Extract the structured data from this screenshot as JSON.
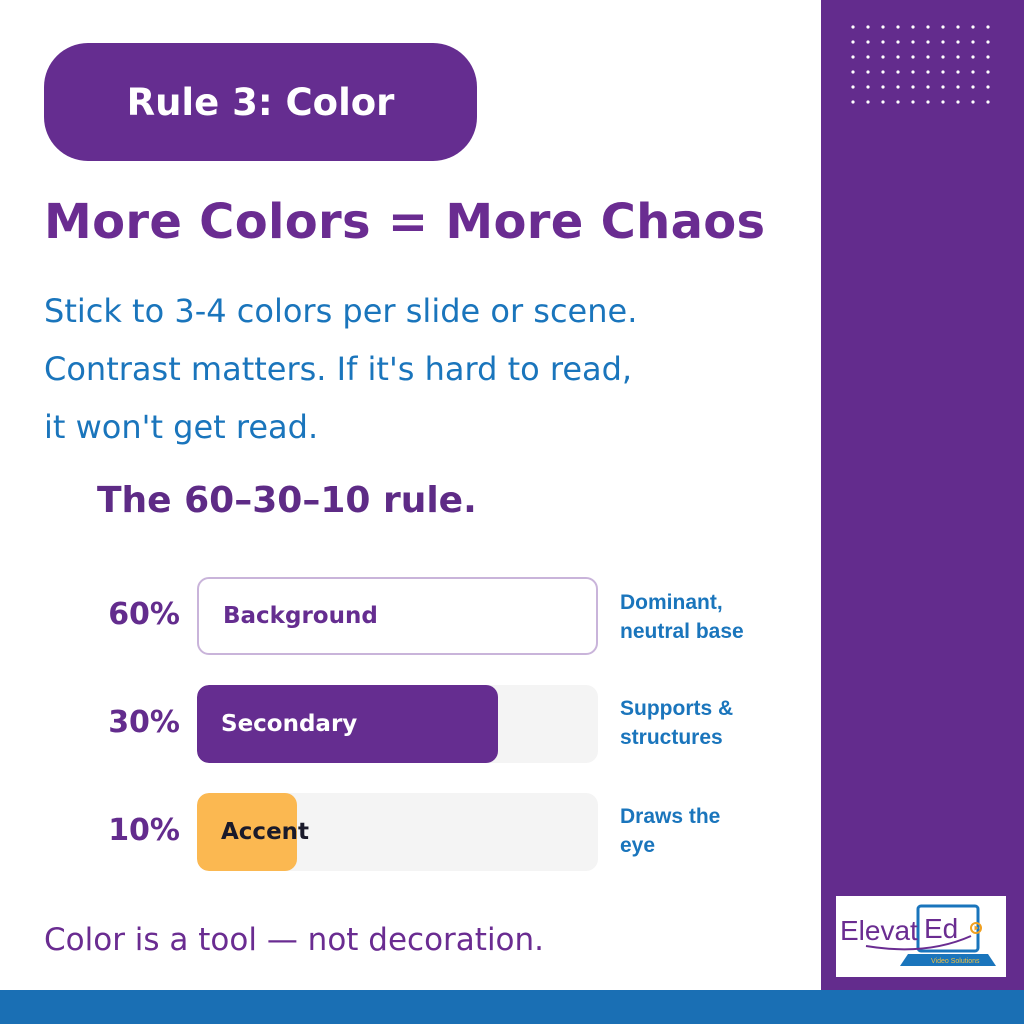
{
  "colors": {
    "purple": "#652d90",
    "blue": "#1a75bc",
    "accent": "#fbb851",
    "track": "#f4f4f4",
    "footer": "#1a6fb4"
  },
  "pill": {
    "label": "Rule 3: Color"
  },
  "headline": "More Colors = More Chaos",
  "body": {
    "lines": [
      "Stick to 3-4 colors per slide or scene.",
      "Contrast matters. If it's hard to read,",
      "it won't get read."
    ]
  },
  "rule_title": "The 60–30–10 rule.",
  "bars": [
    {
      "percent": "60%",
      "label": "Background",
      "fill_fraction": 1.0,
      "style": "outline",
      "desc": [
        "Dominant,",
        "neutral base"
      ]
    },
    {
      "percent": "30%",
      "label": "Secondary",
      "fill_fraction": 0.75,
      "style": "purple",
      "desc": [
        "Supports &",
        "structures"
      ]
    },
    {
      "percent": "10%",
      "label": "Accent",
      "fill_fraction": 0.25,
      "style": "accent",
      "desc": [
        "Draws the",
        "eye"
      ]
    }
  ],
  "tagline": "Color is a tool — not decoration.",
  "logo": {
    "name": "ElevatEd",
    "subtitle": "Video Solutions"
  }
}
